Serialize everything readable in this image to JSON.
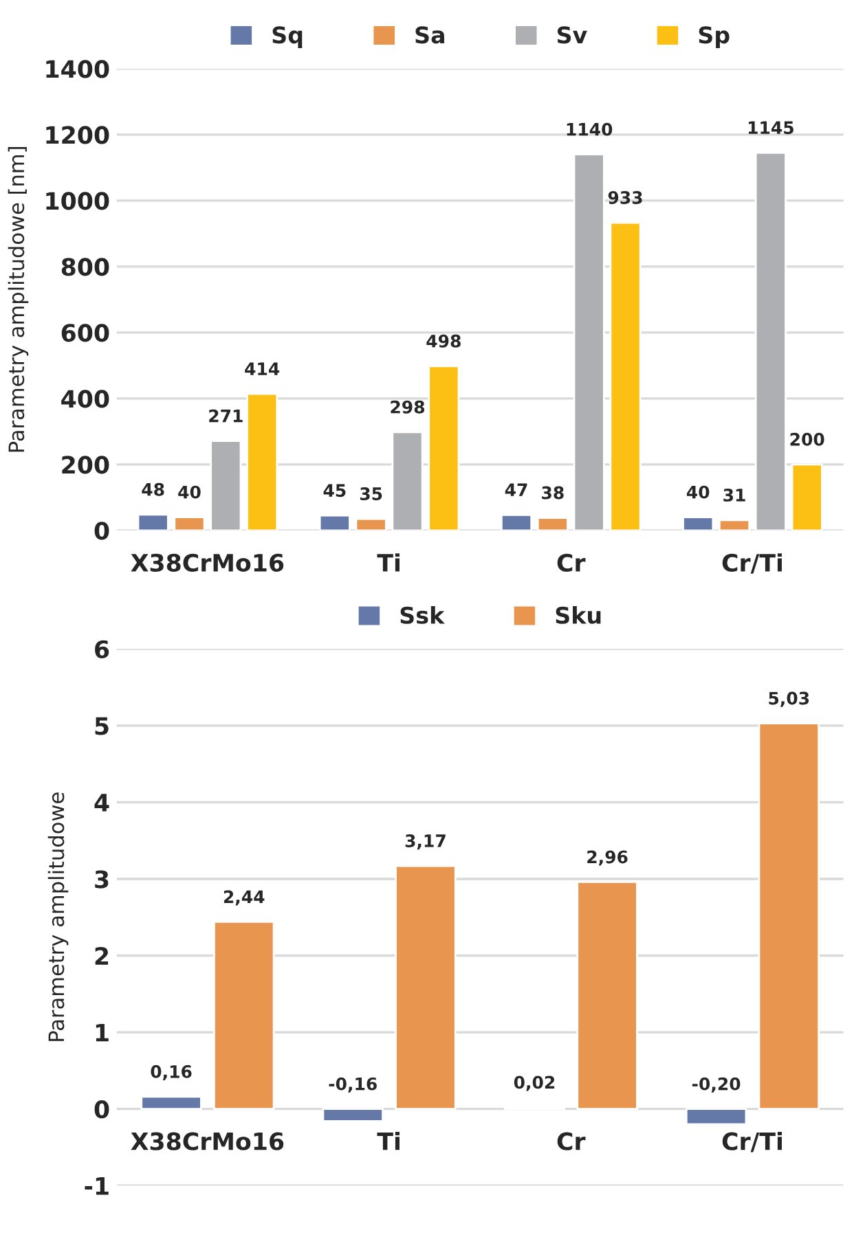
{
  "chart_data": [
    {
      "type": "bar",
      "ylabel": "Parametry amplitudowe [nm]",
      "categories": [
        "X38CrMo16",
        "Ti",
        "Cr",
        "Cr/Ti"
      ],
      "series": [
        {
          "name": "Sq",
          "color": "#6579a8",
          "values": [
            48,
            45,
            47,
            40
          ]
        },
        {
          "name": "Sa",
          "color": "#e8954f",
          "values": [
            40,
            35,
            38,
            31
          ]
        },
        {
          "name": "Sv",
          "color": "#aeafb2",
          "values": [
            271,
            298,
            1140,
            1145
          ]
        },
        {
          "name": "Sp",
          "color": "#fcc014",
          "values": [
            414,
            498,
            933,
            200
          ]
        }
      ],
      "ylim": [
        0,
        1400
      ],
      "yticks": [
        0,
        200,
        400,
        600,
        800,
        1000,
        1200,
        1400
      ],
      "grid": "y",
      "legend": "top",
      "data_labels": true
    },
    {
      "type": "bar",
      "ylabel": "Parametry amplitudowe",
      "categories": [
        "X38CrMo16",
        "Ti",
        "Cr",
        "Cr/Ti"
      ],
      "series": [
        {
          "name": "Ssk",
          "color": "#6579a8",
          "values": [
            0.16,
            -0.16,
            0.02,
            -0.2
          ],
          "value_labels": [
            "0,16",
            "-0,16",
            "0,02",
            "-0,20"
          ]
        },
        {
          "name": "Sku",
          "color": "#e8954f",
          "values": [
            2.44,
            3.17,
            2.96,
            5.03
          ],
          "value_labels": [
            "2,44",
            "3,17",
            "2,96",
            "5,03"
          ]
        }
      ],
      "ylim": [
        -1,
        6
      ],
      "yticks": [
        -1,
        0,
        1,
        2,
        3,
        4,
        5,
        6
      ],
      "grid": "y",
      "legend": "top"
    }
  ]
}
